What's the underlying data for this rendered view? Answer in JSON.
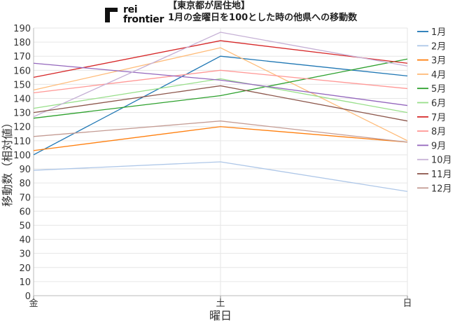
{
  "logo": {
    "line1": "rei",
    "line2": "frontier"
  },
  "title": {
    "line1": "【東京都が居住地】",
    "line2": "1月の金曜日を100とした時の他県への移動数"
  },
  "chart_data": {
    "type": "line",
    "xlabel": "曜日",
    "ylabel": "移動数（相対値）",
    "categories": [
      "金",
      "土",
      "日"
    ],
    "ylim": [
      0,
      190
    ],
    "yticks": [
      0,
      10,
      20,
      30,
      40,
      50,
      60,
      70,
      80,
      90,
      100,
      110,
      120,
      130,
      140,
      150,
      160,
      170,
      180,
      190
    ],
    "grid": true,
    "legend_position": "right",
    "series": [
      {
        "name": "1月",
        "color": "#1f77b4",
        "values": [
          100,
          170,
          156
        ]
      },
      {
        "name": "2月",
        "color": "#aec7e8",
        "values": [
          89,
          95,
          74
        ]
      },
      {
        "name": "3月",
        "color": "#ff7f0e",
        "values": [
          103,
          120,
          109
        ]
      },
      {
        "name": "4月",
        "color": "#ffbb78",
        "values": [
          146,
          176,
          110
        ]
      },
      {
        "name": "5月",
        "color": "#2ca02c",
        "values": [
          126,
          142,
          168
        ]
      },
      {
        "name": "6月",
        "color": "#98df8a",
        "values": [
          133,
          154,
          130
        ]
      },
      {
        "name": "7月",
        "color": "#d62728",
        "values": [
          155,
          181,
          165
        ]
      },
      {
        "name": "8月",
        "color": "#ff9896",
        "values": [
          144,
          160,
          147
        ]
      },
      {
        "name": "9月",
        "color": "#9467bd",
        "values": [
          165,
          153,
          135
        ]
      },
      {
        "name": "10月",
        "color": "#c5b0d5",
        "values": [
          127,
          187,
          163
        ]
      },
      {
        "name": "11月",
        "color": "#8c564b",
        "values": [
          130,
          149,
          124
        ]
      },
      {
        "name": "12月",
        "color": "#c49c94",
        "values": [
          113,
          124,
          109
        ]
      }
    ]
  }
}
